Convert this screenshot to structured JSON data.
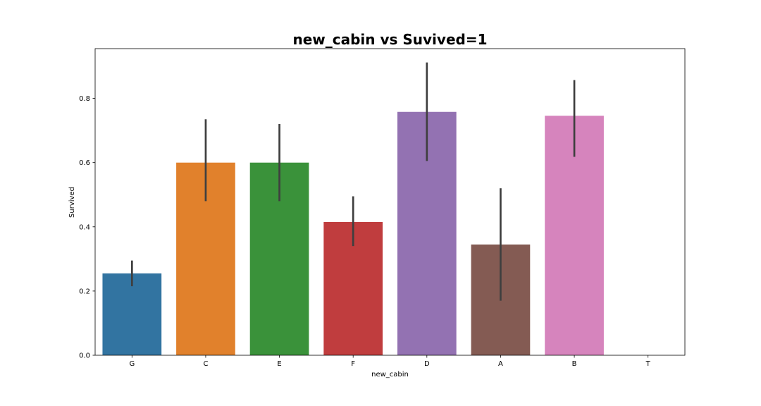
{
  "chart_data": {
    "type": "bar",
    "title": "new_cabin vs Suvived=1",
    "xlabel": "new_cabin",
    "ylabel": "Survived",
    "categories": [
      "G",
      "C",
      "E",
      "F",
      "D",
      "A",
      "B",
      "T"
    ],
    "values": [
      0.255,
      0.6,
      0.6,
      0.415,
      0.758,
      0.345,
      0.746,
      0.0
    ],
    "error_low": [
      0.215,
      0.48,
      0.48,
      0.34,
      0.605,
      0.17,
      0.618,
      null
    ],
    "error_high": [
      0.295,
      0.735,
      0.72,
      0.495,
      0.912,
      0.52,
      0.857,
      null
    ],
    "colors": [
      "#3274a1",
      "#e1812c",
      "#3a923a",
      "#c03d3e",
      "#9372b2",
      "#845b53",
      "#d684bd",
      "#7f7f7f"
    ],
    "error_color": "#3f3f3f",
    "ylim": [
      0,
      0.955
    ],
    "yticks": [
      0.0,
      0.2,
      0.4,
      0.6,
      0.8
    ],
    "ytick_labels": [
      "0.0",
      "0.2",
      "0.4",
      "0.6",
      "0.8"
    ],
    "grid": false,
    "legend": "none"
  }
}
